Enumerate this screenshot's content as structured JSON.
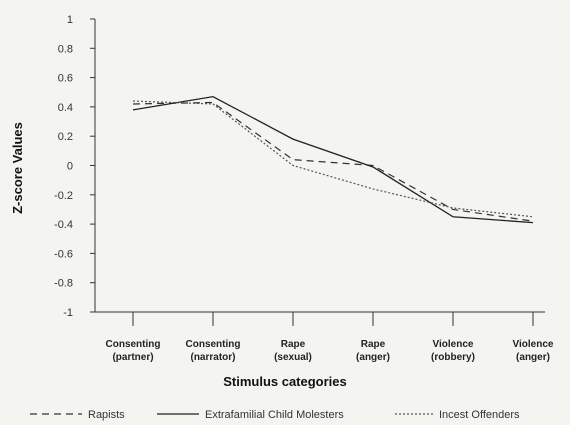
{
  "chart_data": {
    "type": "line",
    "xlabel": "Stimulus categories",
    "ylabel": "Z-score Values",
    "ylim": [
      -1,
      1
    ],
    "yticks": [
      1,
      0.8,
      0.6,
      0.4,
      0.2,
      0,
      -0.2,
      -0.4,
      -0.6,
      -0.8,
      -1
    ],
    "ytick_labels": [
      "1",
      "0.8",
      "0.6",
      "0.4",
      "0.2",
      "0",
      "-0.2",
      "-0.4",
      "-0.6",
      "-0.8",
      "-1"
    ],
    "categories": [
      {
        "line1": "Consenting",
        "line2": "(partner)"
      },
      {
        "line1": "Consenting",
        "line2": "(narrator)"
      },
      {
        "line1": "Rape",
        "line2": "(sexual)"
      },
      {
        "line1": "Rape",
        "line2": "(anger)"
      },
      {
        "line1": "Violence",
        "line2": "(robbery)"
      },
      {
        "line1": "Violence",
        "line2": "(anger)"
      }
    ],
    "grid": false,
    "legend_position": "bottom",
    "series": [
      {
        "name": "Rapists",
        "values": [
          0.42,
          0.43,
          0.04,
          0.0,
          -0.3,
          -0.38
        ],
        "color": "#333333",
        "style": "dashed"
      },
      {
        "name": "Extrafamilial Child Molesters",
        "values": [
          0.38,
          0.47,
          0.18,
          -0.01,
          -0.35,
          -0.39
        ],
        "color": "#222222",
        "style": "solid"
      },
      {
        "name": "Incest Offenders",
        "values": [
          0.44,
          0.42,
          0.0,
          -0.16,
          -0.29,
          -0.35
        ],
        "color": "#555555",
        "style": "dotted"
      }
    ]
  }
}
